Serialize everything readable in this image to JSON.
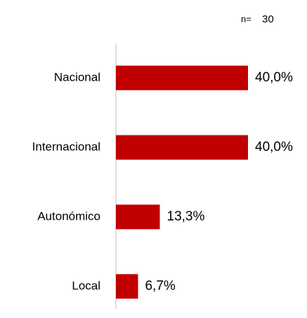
{
  "chart_data": {
    "type": "bar",
    "orientation": "horizontal",
    "sample_label": "n=",
    "sample_size": 30,
    "categories": [
      "Nacional",
      "Internacional",
      "Autonómico",
      "Local"
    ],
    "values": [
      40.0,
      40.0,
      13.3,
      6.7
    ],
    "value_labels": [
      "40,0%",
      "40,0%",
      "13,3%",
      "6,7%"
    ],
    "color": "#c00000"
  }
}
